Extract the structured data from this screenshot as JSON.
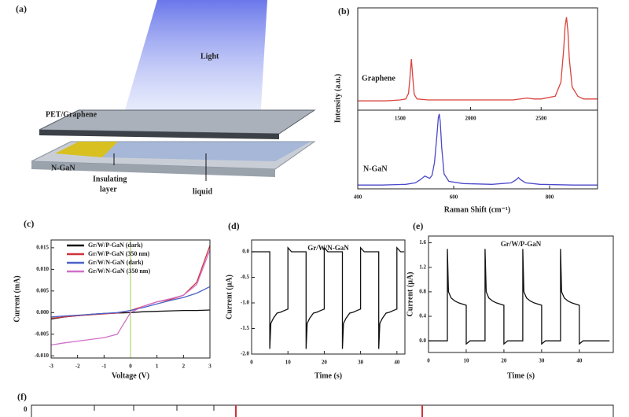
{
  "diagram": {
    "panel": "(a)",
    "light": "Light",
    "top": "PET/Graphene",
    "bottom": "N-GaN",
    "insulating_layer": [
      "Insulating",
      "layer"
    ],
    "liquid": "liquid"
  },
  "chart_data": [
    {
      "type": "line",
      "panel": "(b)",
      "ylabel": "Intensity (a.u.)",
      "x": [
        1200,
        1300,
        1400,
        1500,
        1540,
        1560,
        1570,
        1580,
        1590,
        1600,
        1620,
        1700,
        1900,
        2100,
        2300,
        2400,
        2450,
        2500,
        2600,
        2640,
        2660,
        2670,
        2680,
        2690,
        2700,
        2720,
        2760,
        2800,
        2900
      ],
      "series": [
        {
          "name": "Graphene",
          "color": "#d9433c",
          "values": [
            0.1,
            0.1,
            0.1,
            0.11,
            0.12,
            0.18,
            0.35,
            0.55,
            0.35,
            0.17,
            0.12,
            0.11,
            0.11,
            0.11,
            0.11,
            0.13,
            0.12,
            0.12,
            0.15,
            0.3,
            0.65,
            0.9,
            1.0,
            0.85,
            0.55,
            0.25,
            0.15,
            0.12,
            0.12
          ]
        }
      ],
      "xlim": [
        1200,
        2900
      ],
      "xticks": [
        1500,
        2000,
        2500
      ],
      "ylim": [
        0,
        1.1
      ]
    },
    {
      "type": "line",
      "xlabel": "Raman Shift (cm⁻¹)",
      "x": [
        400,
        450,
        500,
        520,
        530,
        540,
        550,
        555,
        560,
        565,
        568,
        570,
        572,
        575,
        580,
        590,
        620,
        680,
        720,
        730,
        735,
        740,
        750,
        780,
        850,
        900
      ],
      "series": [
        {
          "name": "N-GaN",
          "color": "#4a48c8",
          "values": [
            0.05,
            0.05,
            0.06,
            0.08,
            0.12,
            0.17,
            0.14,
            0.18,
            0.35,
            0.7,
            0.95,
            1.0,
            0.9,
            0.55,
            0.2,
            0.1,
            0.07,
            0.06,
            0.08,
            0.12,
            0.15,
            0.12,
            0.08,
            0.06,
            0.05,
            0.05
          ]
        }
      ],
      "xlim": [
        400,
        900
      ],
      "xticks": [
        400,
        600,
        800
      ],
      "ylim": [
        0,
        1.05
      ]
    },
    {
      "type": "line",
      "panel": "(c)",
      "xlabel": "Voltage (V)",
      "ylabel": "Current (mA)",
      "x": [
        -3,
        -2.5,
        -2,
        -1.5,
        -1,
        -0.5,
        0,
        0.5,
        1,
        1.5,
        2,
        2.5,
        3
      ],
      "series": [
        {
          "name": "Gr/W/P-GaN (dark)",
          "color": "#111111",
          "values": [
            -0.0015,
            -0.001,
            -0.0007,
            -0.0004,
            -0.0002,
            -0.0001,
            0,
            0.0002,
            0.0003,
            0.0004,
            0.0005,
            0.0005,
            0.0006
          ]
        },
        {
          "name": "Gr/W/P-GaN (350 nm)",
          "color": "#d0323a",
          "values": [
            -0.0013,
            -0.001,
            -0.0007,
            -0.0005,
            -0.0003,
            -0.0001,
            0.0005,
            0.0015,
            0.0025,
            0.003,
            0.004,
            0.007,
            0.0155
          ]
        },
        {
          "name": "Gr/W/N-GaN (dark)",
          "color": "#4a62c8",
          "values": [
            -0.001,
            -0.0008,
            -0.0006,
            -0.0004,
            -0.0002,
            0,
            0.0005,
            0.0012,
            0.002,
            0.0028,
            0.0035,
            0.0045,
            0.006
          ]
        },
        {
          "name": "Gr/W/N-GaN (350 nm)",
          "color": "#d070c8",
          "values": [
            -0.0075,
            -0.007,
            -0.0066,
            -0.0062,
            -0.0058,
            -0.005,
            0,
            0.0015,
            0.0025,
            0.0032,
            0.004,
            0.0065,
            0.0145
          ]
        }
      ],
      "xlim": [
        -3,
        3
      ],
      "xticks": [
        -3,
        -2,
        -1,
        0,
        1,
        2,
        3
      ],
      "ylim": [
        -0.0105,
        0.0168
      ],
      "yticks": [
        {
          "value": 0.015,
          "label": "0.015"
        },
        {
          "value": 0.01,
          "label": "0.010"
        },
        {
          "value": 0.005,
          "label": "0.005"
        },
        {
          "value": 0,
          "label": "0.000"
        },
        {
          "value": -0.005,
          "label": "-0.005"
        },
        {
          "value": -0.01,
          "label": "-0.010"
        }
      ],
      "vline": 0,
      "vline_color": "#9ccc55"
    },
    {
      "type": "line",
      "panel": "(d)",
      "title": "Gr/W/N-GaN",
      "xlabel": "Time (s)",
      "ylabel": "Current (μA)",
      "color": "#111111",
      "x": [
        0,
        5,
        5,
        5.3,
        6,
        7,
        8,
        9,
        10,
        10,
        11,
        15,
        15,
        15.3,
        16,
        17,
        18,
        19,
        20,
        20,
        21,
        25,
        25,
        25.3,
        26,
        27,
        28,
        29,
        30,
        30,
        31,
        35,
        35,
        35.3,
        36,
        37,
        38,
        39,
        40,
        40,
        41,
        42
      ],
      "values": [
        0,
        0,
        -1.9,
        -1.4,
        -1.3,
        -1.2,
        -1.18,
        -1.15,
        -1.12,
        0.08,
        0,
        0,
        -1.9,
        -1.4,
        -1.3,
        -1.2,
        -1.18,
        -1.15,
        -1.12,
        0.08,
        0,
        0,
        -1.9,
        -1.4,
        -1.3,
        -1.2,
        -1.18,
        -1.15,
        -1.12,
        0.08,
        0,
        0,
        -1.9,
        -1.4,
        -1.3,
        -1.2,
        -1.18,
        -1.15,
        -1.12,
        0.08,
        0,
        0
      ],
      "xlim": [
        0,
        42.2
      ],
      "xticks": [
        0,
        10,
        20,
        30,
        40
      ],
      "ylim": [
        -2.0,
        0.23
      ],
      "yticks": [
        {
          "value": 0,
          "label": "0.0"
        },
        -0.5,
        {
          "value": -1,
          "label": "-1.0"
        },
        -1.5,
        {
          "value": -2,
          "label": "-2.0"
        }
      ]
    },
    {
      "type": "line",
      "panel": "(e)",
      "title": "Gr/W/P-GaN",
      "xlabel": "Time (s)",
      "ylabel": "Current (μA)",
      "color": "#111111",
      "x": [
        0,
        5,
        5,
        5.3,
        6,
        7,
        8,
        9,
        10,
        10,
        11,
        15,
        15,
        15.3,
        16,
        17,
        18,
        19,
        20,
        20,
        21,
        25,
        25,
        25.3,
        26,
        27,
        28,
        29,
        30,
        30,
        31,
        35,
        35,
        35.3,
        36,
        37,
        38,
        39,
        40,
        40,
        41,
        48
      ],
      "values": [
        0,
        0,
        1.5,
        0.8,
        0.7,
        0.65,
        0.62,
        0.6,
        0.58,
        -0.05,
        0,
        0,
        1.5,
        0.8,
        0.7,
        0.65,
        0.62,
        0.6,
        0.58,
        -0.05,
        0,
        0,
        1.5,
        0.8,
        0.7,
        0.65,
        0.62,
        0.6,
        0.58,
        -0.05,
        0,
        0,
        1.5,
        0.8,
        0.7,
        0.65,
        0.62,
        0.6,
        0.58,
        -0.05,
        0,
        0
      ],
      "xlim": [
        0,
        49
      ],
      "xticks": [
        0,
        10,
        20,
        30,
        40
      ],
      "ylim": [
        -0.19,
        1.71
      ],
      "yticks": [
        {
          "value": 0,
          "label": "0.0"
        },
        0.4,
        0.8,
        1.2,
        1.6
      ]
    }
  ],
  "panel_f": {
    "panel": "(f)",
    "tick": "0"
  }
}
